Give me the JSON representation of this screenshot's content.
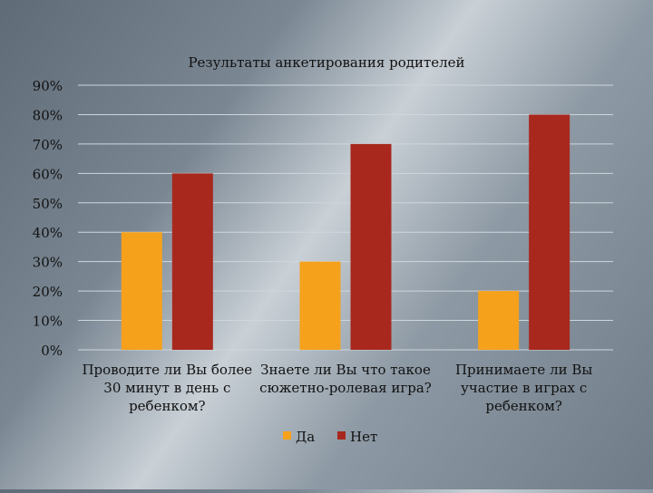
{
  "chart_data": {
    "type": "bar",
    "title": "Результаты анкетирования родителей",
    "categories": [
      [
        "Проводите ли Вы более",
        "30 минут в день с",
        "ребенком?"
      ],
      [
        "Знаете ли Вы что такое",
        "сюжетно-ролевая игра?"
      ],
      [
        "Принимаете ли Вы",
        "участие в играх с",
        "ребенком?"
      ]
    ],
    "series": [
      {
        "name": "Да",
        "values": [
          40,
          30,
          20
        ],
        "color": "#f5a11c"
      },
      {
        "name": "Нет",
        "values": [
          60,
          70,
          80
        ],
        "color": "#a8281e"
      }
    ],
    "ylim": [
      0,
      90
    ],
    "yticks": [
      "0%",
      "10%",
      "20%",
      "30%",
      "40%",
      "50%",
      "60%",
      "70%",
      "80%",
      "90%"
    ],
    "grid": true,
    "legend": "bottom"
  }
}
